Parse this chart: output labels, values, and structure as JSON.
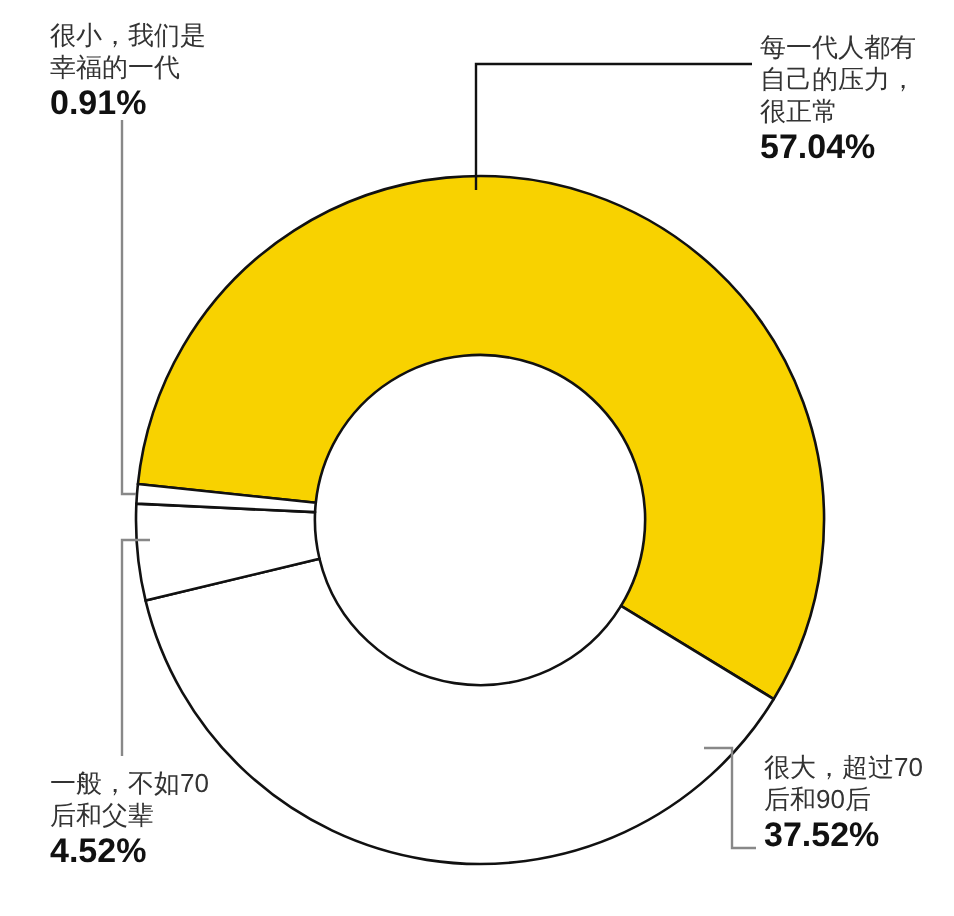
{
  "chart_data": {
    "type": "donut",
    "categories": [
      "每一代人都有自己的压力，很正常",
      "很大，超过70后和90后",
      "一般，不如70后和父辈",
      "很小，我们是幸福的一代"
    ],
    "values": [
      57.04,
      37.52,
      4.52,
      0.91
    ],
    "colors": [
      "#f8d200",
      "#ffffff",
      "#ffffff",
      "#ffffff"
    ],
    "value_labels": [
      "57.04%",
      "37.52%",
      "4.52%",
      "0.91%"
    ],
    "legend": false
  }
}
